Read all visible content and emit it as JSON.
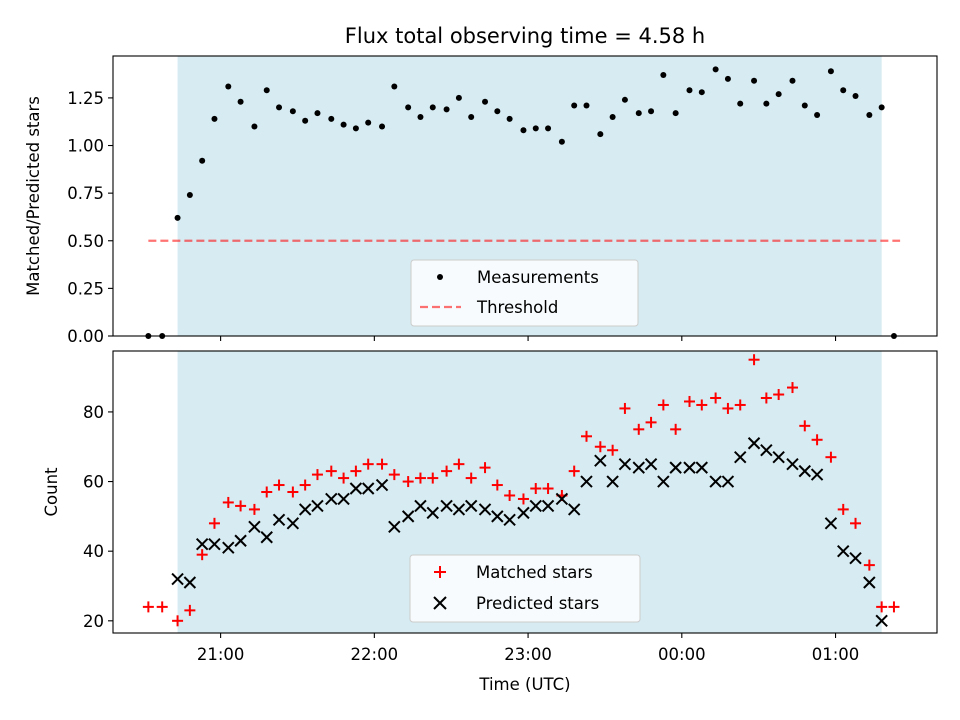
{
  "figure": {
    "title": "Flux total observing time = 4.58 h",
    "xlabel": "Time (UTC)",
    "xticks": [
      "21:00",
      "22:00",
      "23:00",
      "00:00",
      "01:00"
    ],
    "shade_color": "#add8e6"
  },
  "chart_data": [
    {
      "type": "scatter",
      "panel": "top",
      "ylabel": "Matched/Predicted stars",
      "ylim": [
        0,
        1.47
      ],
      "yticks": [
        "0.00",
        "0.25",
        "0.50",
        "0.75",
        "1.00",
        "1.25"
      ],
      "xlim_hours": [
        20.3,
        25.66
      ],
      "observing_window_hours": [
        20.72,
        25.3
      ],
      "threshold": 0.5,
      "legend": [
        "Measurements",
        "Threshold"
      ],
      "legend_position": "lower center",
      "colors": {
        "measurements": "#000000",
        "threshold": "#ff0000"
      },
      "series": [
        {
          "name": "Measurements",
          "x": [
            20.53,
            20.62,
            20.72,
            20.8,
            20.88,
            20.96,
            21.05,
            21.13,
            21.22,
            21.3,
            21.38,
            21.47,
            21.55,
            21.63,
            21.72,
            21.8,
            21.88,
            21.96,
            22.05,
            22.13,
            22.22,
            22.3,
            22.38,
            22.47,
            22.55,
            22.63,
            22.72,
            22.8,
            22.88,
            22.97,
            23.05,
            23.13,
            23.22,
            23.3,
            23.38,
            23.47,
            23.55,
            23.63,
            23.72,
            23.8,
            23.88,
            23.96,
            24.05,
            24.13,
            24.22,
            24.3,
            24.38,
            24.47,
            24.55,
            24.63,
            24.72,
            24.8,
            24.88,
            24.97,
            25.05,
            25.13,
            25.22,
            25.3,
            25.38
          ],
          "values": [
            0.0,
            0.0,
            0.62,
            0.74,
            0.92,
            1.14,
            1.31,
            1.23,
            1.1,
            1.29,
            1.2,
            1.18,
            1.13,
            1.17,
            1.14,
            1.11,
            1.09,
            1.12,
            1.1,
            1.31,
            1.2,
            1.15,
            1.2,
            1.19,
            1.25,
            1.15,
            1.23,
            1.18,
            1.14,
            1.08,
            1.09,
            1.09,
            1.02,
            1.21,
            1.21,
            1.06,
            1.15,
            1.24,
            1.17,
            1.18,
            1.37,
            1.17,
            1.29,
            1.28,
            1.4,
            1.35,
            1.22,
            1.34,
            1.22,
            1.27,
            1.34,
            1.21,
            1.16,
            1.39,
            1.29,
            1.26,
            1.16,
            1.2,
            0.0
          ]
        }
      ]
    },
    {
      "type": "scatter",
      "panel": "bottom",
      "ylabel": "Count",
      "ylim": [
        16.5,
        97.5
      ],
      "yticks": [
        "20",
        "40",
        "60",
        "80"
      ],
      "xlim_hours": [
        20.3,
        25.66
      ],
      "observing_window_hours": [
        20.72,
        25.3
      ],
      "legend": [
        "Matched stars",
        "Predicted stars"
      ],
      "legend_position": "lower center",
      "colors": {
        "matched": "#ff0000",
        "predicted": "#000000"
      },
      "series": [
        {
          "name": "Matched stars",
          "x": [
            20.53,
            20.62,
            20.72,
            20.8,
            20.88,
            20.96,
            21.05,
            21.13,
            21.22,
            21.3,
            21.38,
            21.47,
            21.55,
            21.63,
            21.72,
            21.8,
            21.88,
            21.96,
            22.05,
            22.13,
            22.22,
            22.3,
            22.38,
            22.47,
            22.55,
            22.63,
            22.72,
            22.8,
            22.88,
            22.97,
            23.05,
            23.13,
            23.22,
            23.3,
            23.38,
            23.47,
            23.55,
            23.63,
            23.72,
            23.8,
            23.88,
            23.96,
            24.05,
            24.13,
            24.22,
            24.3,
            24.38,
            24.47,
            24.55,
            24.63,
            24.72,
            24.8,
            24.88,
            24.97,
            25.05,
            25.13,
            25.22,
            25.3,
            25.38
          ],
          "values": [
            24,
            24,
            20,
            23,
            39,
            48,
            54,
            53,
            52,
            57,
            59,
            57,
            59,
            62,
            63,
            61,
            63,
            65,
            65,
            62,
            60,
            61,
            61,
            63,
            65,
            61,
            64,
            59,
            56,
            55,
            58,
            58,
            56,
            63,
            73,
            70,
            69,
            81,
            75,
            77,
            82,
            75,
            83,
            82,
            84,
            81,
            82,
            95,
            84,
            85,
            87,
            76,
            72,
            67,
            52,
            48,
            36,
            24,
            24
          ]
        },
        {
          "name": "Predicted stars",
          "x": [
            20.72,
            20.8,
            20.88,
            20.96,
            21.05,
            21.13,
            21.22,
            21.3,
            21.38,
            21.47,
            21.55,
            21.63,
            21.72,
            21.8,
            21.88,
            21.96,
            22.05,
            22.13,
            22.22,
            22.3,
            22.38,
            22.47,
            22.55,
            22.63,
            22.72,
            22.8,
            22.88,
            22.97,
            23.05,
            23.13,
            23.22,
            23.3,
            23.38,
            23.47,
            23.55,
            23.63,
            23.72,
            23.8,
            23.88,
            23.96,
            24.05,
            24.13,
            24.22,
            24.3,
            24.38,
            24.47,
            24.55,
            24.63,
            24.72,
            24.8,
            24.88,
            24.97,
            25.05,
            25.13,
            25.22,
            25.3
          ],
          "values": [
            32,
            31,
            42,
            42,
            41,
            43,
            47,
            44,
            49,
            48,
            52,
            53,
            55,
            55,
            58,
            58,
            59,
            47,
            50,
            53,
            51,
            53,
            52,
            53,
            52,
            50,
            49,
            51,
            53,
            53,
            55,
            52,
            60,
            66,
            60,
            65,
            64,
            65,
            60,
            64,
            64,
            64,
            60,
            60,
            67,
            71,
            69,
            67,
            65,
            63,
            62,
            48,
            40,
            38,
            31,
            20
          ]
        }
      ]
    }
  ]
}
